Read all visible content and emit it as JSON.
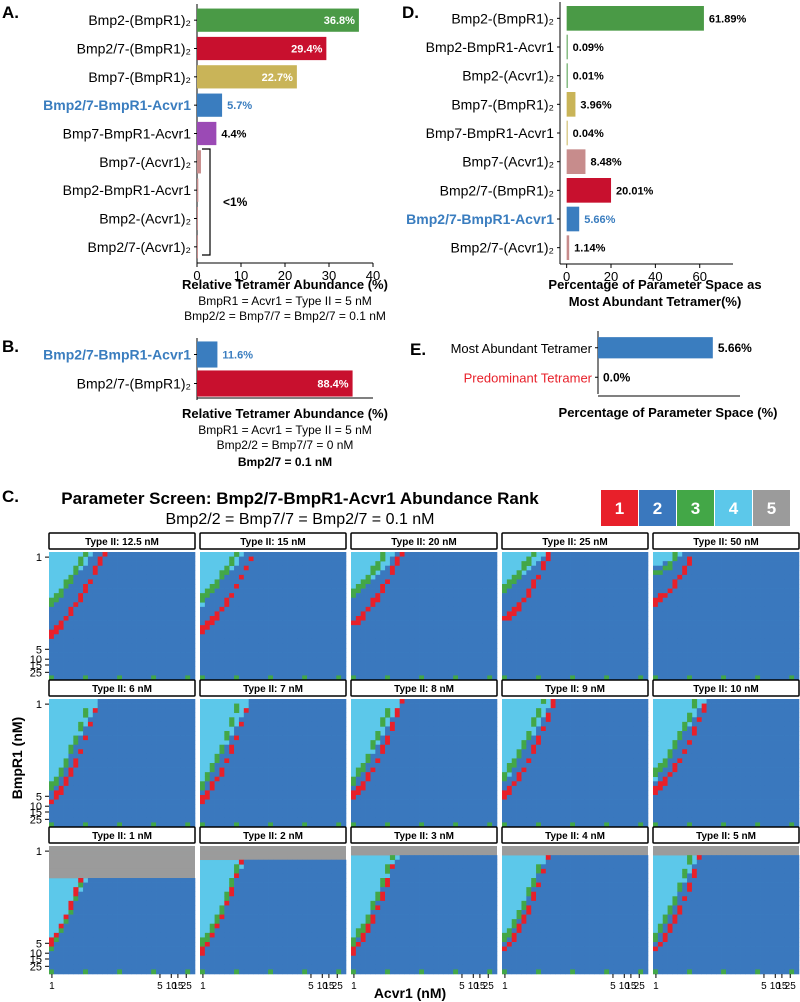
{
  "colors": {
    "green": "#4a9a46",
    "red": "#c8102e",
    "gold": "#c9b458",
    "blue": "#3a7dbf",
    "purple": "#9b4ab5",
    "pink": "#c78c8c",
    "rank1": "#e8202a",
    "rank2": "#3a78be",
    "rank3": "#43a747",
    "rank4": "#5cc8ea",
    "rank5": "#9b9b9b",
    "highlight_text": "#3a7dbf",
    "predominant_text": "#e8202a"
  },
  "chart_data": [
    {
      "panel": "A.",
      "type": "bar",
      "orientation": "horizontal",
      "categories": [
        "Bmp2-(BmpR1)₂",
        "Bmp2/7-(BmpR1)₂",
        "Bmp7-(BmpR1)₂",
        "Bmp2/7-BmpR1-Acvr1",
        "Bmp7-BmpR1-Acvr1",
        "Bmp7-(Acvr1)₂",
        "Bmp2-BmpR1-Acvr1",
        "Bmp2-(Acvr1)₂",
        "Bmp2/7-(Acvr1)₂"
      ],
      "values": [
        36.8,
        29.4,
        22.7,
        5.7,
        4.4,
        0.9,
        0.3,
        0.1,
        0.1
      ],
      "value_labels": [
        "36.8%",
        "29.4%",
        "22.7%",
        "5.7%",
        "4.4%",
        "",
        "",
        "",
        ""
      ],
      "bar_colors": [
        "green",
        "red",
        "gold",
        "blue",
        "purple",
        "pink",
        "pink",
        "pink",
        "pink"
      ],
      "highlight_category": "Bmp2/7-BmpR1-Acvr1",
      "bracket_label": "<1%",
      "xlim": [
        0,
        40
      ],
      "xticks": [
        0,
        10,
        20,
        30,
        40
      ],
      "xlabel": "Relative Tetramer Abundance  (%)",
      "notes": [
        "BmpR1  = Acvr1 = Type II  = 5 nM",
        "Bmp2/2  = Bmp7/7 = Bmp2/7 = 0.1 nM"
      ]
    },
    {
      "panel": "B.",
      "type": "bar",
      "orientation": "horizontal",
      "categories": [
        "Bmp2/7-BmpR1-Acvr1",
        "Bmp2/7-(BmpR1)₂"
      ],
      "values": [
        11.6,
        88.4
      ],
      "value_labels": [
        "11.6%",
        "88.4%"
      ],
      "bar_colors": [
        "blue",
        "red"
      ],
      "highlight_category": "Bmp2/7-BmpR1-Acvr1",
      "xlim": [
        0,
        100
      ],
      "xlabel": "Relative  Tetramer Abundance  (%)",
      "notes": [
        "BmpR1  = Acvr1 = Type II  = 5 nM",
        "Bmp2/2 = Bmp7/7 = 0 nM"
      ],
      "bold_note": "Bmp2/7 = 0.1 nM"
    },
    {
      "panel": "D.",
      "type": "bar",
      "orientation": "horizontal",
      "categories": [
        "Bmp2-(BmpR1)₂",
        "Bmp2-BmpR1-Acvr1",
        "Bmp2-(Acvr1)₂",
        "Bmp7-(BmpR1)₂",
        "Bmp7-BmpR1-Acvr1",
        "Bmp7-(Acvr1)₂",
        "Bmp2/7-(BmpR1)₂",
        "Bmp2/7-BmpR1-Acvr1",
        "Bmp2/7-(Acvr1)₂"
      ],
      "values": [
        61.89,
        0.09,
        0.01,
        3.96,
        0.04,
        8.48,
        20.01,
        5.66,
        1.14
      ],
      "value_labels": [
        "61.89%",
        "0.09%",
        "0.01%",
        "3.96%",
        "0.04%",
        "8.48%",
        "20.01%",
        "5.66%",
        "1.14%"
      ],
      "bar_colors": [
        "green",
        "green",
        "green",
        "gold",
        "gold",
        "pink",
        "red",
        "blue",
        "pink"
      ],
      "highlight_category": "Bmp2/7-BmpR1-Acvr1",
      "xlim": [
        -3,
        75
      ],
      "xticks": [
        0,
        20,
        40,
        60
      ],
      "xlabel": [
        "Percentage of Parameter Space as",
        "Most Abundant  Tetramer(%)"
      ]
    },
    {
      "panel": "E.",
      "type": "bar",
      "orientation": "horizontal",
      "categories": [
        "Most Abundant Tetramer",
        "Predominant Tetramer"
      ],
      "values": [
        5.66,
        0.0
      ],
      "value_labels": [
        "5.66%",
        "0.0%"
      ],
      "bar_colors": [
        "blue",
        "blue"
      ],
      "xlim": [
        0,
        7
      ],
      "xlabel": "Percentage of Parameter Space (%)"
    },
    {
      "panel": "C.",
      "type": "heatmap",
      "title": "Parameter Screen: Bmp2/7-BmpR1-Acvr1 Abundance Rank",
      "subtitle": "Bmp2/2 = Bmp7/7 = Bmp2/7 = 0.1 nM",
      "legend": [
        "1",
        "2",
        "3",
        "4",
        "5"
      ],
      "xlabel": "Acvr1 (nM)",
      "ylabel": "BmpR1 (nM)",
      "x_ticks": [
        "1",
        "5",
        "10",
        "15",
        "25"
      ],
      "y_ticks": [
        "1",
        "5",
        "10",
        "15",
        "25"
      ],
      "facets": [
        {
          "label": "Type II: 12.5 nM",
          "gray": 0,
          "b": [
            12,
            2.8,
            0
          ],
          "g": [
            9.6,
            2.2,
            0.25
          ],
          "r": [
            16.6,
            1.9,
            0.25
          ]
        },
        {
          "label": "Type II: 15 nM",
          "gray": 0,
          "b": [
            11.2,
            2.6,
            0
          ],
          "g": [
            9.0,
            2.0,
            0.3
          ],
          "r": [
            15.6,
            1.6,
            0.3
          ]
        },
        {
          "label": "Type II: 20 nM",
          "gray": 0,
          "b": [
            9.8,
            2.2,
            0
          ],
          "g": [
            7.8,
            1.8,
            0.35
          ],
          "r": [
            14.2,
            1.4,
            0.35
          ]
        },
        {
          "label": "Type II: 25 nM",
          "gray": 0,
          "b": [
            8.4,
            1.9,
            0
          ],
          "g": [
            6.8,
            1.6,
            0.4
          ],
          "r": [
            13.2,
            1.2,
            0.4
          ]
        },
        {
          "label": "Type II: 50 nM",
          "gray": 0,
          "b": [
            3.0,
            1.0,
            0
          ],
          "g": [
            4.0,
            1.2,
            0.5
          ],
          "r": [
            9.5,
            0.8,
            0.5
          ]
        },
        {
          "label": "Type II: 6 nM",
          "gray": 0,
          "b": [
            20.0,
            4.2,
            0
          ],
          "g": [
            18.0,
            3.0,
            0.5
          ],
          "r": [
            21.2,
            2.2,
            0.5
          ]
        },
        {
          "label": "Type II: 7 nM",
          "gray": 0,
          "b": [
            19.4,
            4.0,
            0
          ],
          "g": [
            17.2,
            3.0,
            0.5
          ],
          "r": [
            20.6,
            2.1,
            0.5
          ]
        },
        {
          "label": "Type II: 8 nM",
          "gray": 0,
          "b": [
            18.8,
            3.8,
            0
          ],
          "g": [
            16.4,
            2.8,
            0.45
          ],
          "r": [
            20.0,
            2.0,
            0.45
          ]
        },
        {
          "label": "Type II: 9 nM",
          "gray": 0,
          "b": [
            18.0,
            3.6,
            0
          ],
          "g": [
            15.4,
            2.6,
            0.4
          ],
          "r": [
            19.6,
            2.0,
            0.4
          ]
        },
        {
          "label": "Type II: 10 nM",
          "gray": 0,
          "b": [
            17.2,
            3.4,
            0
          ],
          "g": [
            14.8,
            2.4,
            0.35
          ],
          "r": [
            19.0,
            1.9,
            0.35
          ]
        },
        {
          "label": "Type II: 1 nM",
          "gray": 7,
          "b": [
            21.5,
            4.0,
            0
          ],
          "g": [
            20.2,
            2.6,
            0.6
          ],
          "r": [
            20.0,
            3.0,
            0.6
          ]
        },
        {
          "label": "Type II: 2 nM",
          "gray": 3,
          "b": [
            21.0,
            4.0,
            0
          ],
          "g": [
            19.6,
            2.6,
            0.6
          ],
          "r": [
            21.6,
            2.6,
            0.6
          ]
        },
        {
          "label": "Type II: 3 nM",
          "gray": 2,
          "b": [
            21.0,
            4.1,
            0
          ],
          "g": [
            19.4,
            2.6,
            0.55
          ],
          "r": [
            21.6,
            2.4,
            0.55
          ]
        },
        {
          "label": "Type II: 4 nM",
          "gray": 2,
          "b": [
            20.6,
            4.2,
            0
          ],
          "g": [
            18.8,
            2.7,
            0.5
          ],
          "r": [
            21.4,
            2.3,
            0.5
          ]
        },
        {
          "label": "Type II: 5 nM",
          "gray": 2,
          "b": [
            20.2,
            4.2,
            0
          ],
          "g": [
            18.4,
            3.0,
            0.5
          ],
          "r": [
            21.4,
            2.2,
            0.5
          ]
        }
      ]
    }
  ]
}
